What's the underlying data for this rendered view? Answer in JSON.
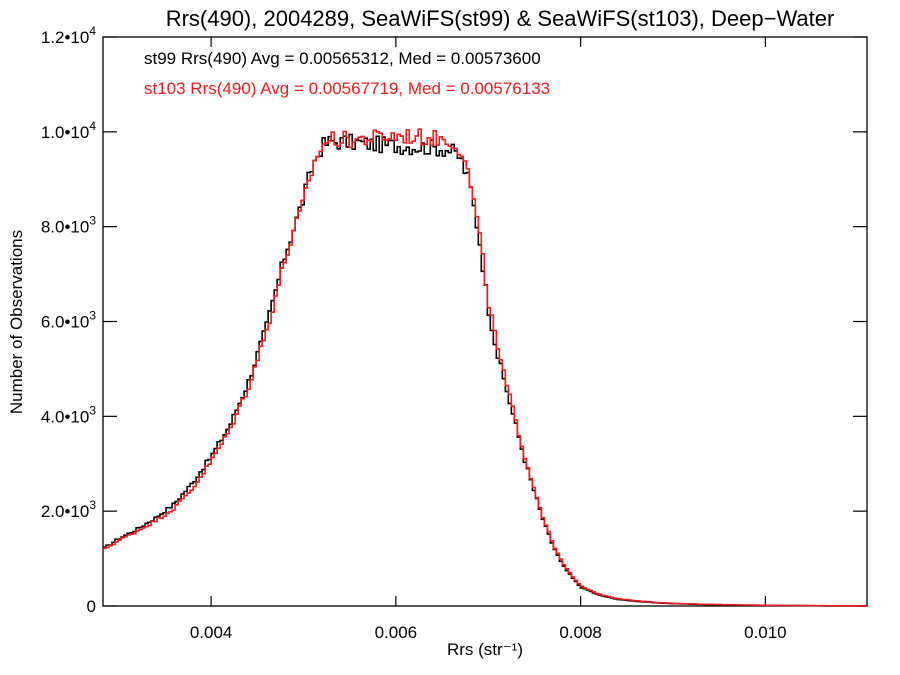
{
  "chart_data": {
    "type": "line",
    "title": "Rrs(490), 2004289, SeaWiFS(st99) & SeaWiFS(st103), Deep−Water",
    "xlabel": "Rrs (str⁻¹)",
    "ylabel": "Number of Observations",
    "xlim": [
      0.00283,
      0.0111
    ],
    "ylim": [
      0,
      12000
    ],
    "x_ticks": [
      {
        "value": 0.004,
        "label": "0.004"
      },
      {
        "value": 0.006,
        "label": "0.006"
      },
      {
        "value": 0.008,
        "label": "0.008"
      },
      {
        "value": 0.01,
        "label": "0.010"
      }
    ],
    "y_ticks": [
      {
        "value": 0,
        "mant": "0",
        "exp": ""
      },
      {
        "value": 2000,
        "mant": "2.0•10",
        "exp": "3"
      },
      {
        "value": 4000,
        "mant": "4.0•10",
        "exp": "3"
      },
      {
        "value": 6000,
        "mant": "6.0•10",
        "exp": "3"
      },
      {
        "value": 8000,
        "mant": "8.0•10",
        "exp": "3"
      },
      {
        "value": 10000,
        "mant": "1.0•10",
        "exp": "4"
      },
      {
        "value": 12000,
        "mant": "1.2•10",
        "exp": "4"
      }
    ],
    "grid": false,
    "legend_position": "top-left",
    "series": [
      {
        "name": "st99",
        "color": "#000000",
        "legend": "st99 Rrs(490) Avg = 0.00565312, Med = 0.00573600",
        "points": [
          [
            0.00283,
            1200
          ],
          [
            0.003,
            1420
          ],
          [
            0.0032,
            1620
          ],
          [
            0.0034,
            1860
          ],
          [
            0.0036,
            2150
          ],
          [
            0.0038,
            2600
          ],
          [
            0.004,
            3150
          ],
          [
            0.0042,
            3800
          ],
          [
            0.0044,
            4700
          ],
          [
            0.0046,
            5900
          ],
          [
            0.0048,
            7400
          ],
          [
            0.005,
            8600
          ],
          [
            0.0051,
            9300
          ],
          [
            0.0052,
            9700
          ],
          [
            0.0053,
            9800
          ],
          [
            0.0055,
            9780
          ],
          [
            0.0057,
            9750
          ],
          [
            0.0059,
            9720
          ],
          [
            0.0061,
            9700
          ],
          [
            0.0063,
            9680
          ],
          [
            0.0065,
            9650
          ],
          [
            0.0066,
            9600
          ],
          [
            0.0067,
            9450
          ],
          [
            0.0068,
            8900
          ],
          [
            0.0069,
            7800
          ],
          [
            0.007,
            6300
          ],
          [
            0.0071,
            5300
          ],
          [
            0.0072,
            4550
          ],
          [
            0.0073,
            3800
          ],
          [
            0.0074,
            3050
          ],
          [
            0.0075,
            2400
          ],
          [
            0.0076,
            1780
          ],
          [
            0.0077,
            1280
          ],
          [
            0.0078,
            880
          ],
          [
            0.0079,
            620
          ],
          [
            0.008,
            400
          ],
          [
            0.0082,
            230
          ],
          [
            0.0084,
            140
          ],
          [
            0.0086,
            100
          ],
          [
            0.0088,
            70
          ],
          [
            0.009,
            50
          ],
          [
            0.0094,
            30
          ],
          [
            0.0098,
            18
          ],
          [
            0.0102,
            10
          ],
          [
            0.0106,
            5
          ],
          [
            0.0111,
            2
          ]
        ]
      },
      {
        "name": "st103",
        "color": "#ee1c1c",
        "legend": "st103 Rrs(490) Avg = 0.00567719, Med = 0.00576133",
        "points": [
          [
            0.00283,
            1180
          ],
          [
            0.003,
            1380
          ],
          [
            0.0032,
            1580
          ],
          [
            0.0034,
            1800
          ],
          [
            0.0036,
            2060
          ],
          [
            0.0038,
            2480
          ],
          [
            0.004,
            3050
          ],
          [
            0.0042,
            3700
          ],
          [
            0.0044,
            4600
          ],
          [
            0.0046,
            5800
          ],
          [
            0.0048,
            7300
          ],
          [
            0.005,
            8500
          ],
          [
            0.0051,
            9250
          ],
          [
            0.0052,
            9720
          ],
          [
            0.0053,
            9850
          ],
          [
            0.0055,
            9830
          ],
          [
            0.0057,
            9860
          ],
          [
            0.0059,
            9900
          ],
          [
            0.0061,
            9920
          ],
          [
            0.0063,
            9880
          ],
          [
            0.0065,
            9850
          ],
          [
            0.0066,
            9820
          ],
          [
            0.0067,
            9650
          ],
          [
            0.0068,
            9000
          ],
          [
            0.0069,
            7900
          ],
          [
            0.007,
            6450
          ],
          [
            0.0071,
            5450
          ],
          [
            0.0072,
            4650
          ],
          [
            0.0073,
            3900
          ],
          [
            0.0074,
            3120
          ],
          [
            0.0075,
            2460
          ],
          [
            0.0076,
            1830
          ],
          [
            0.0077,
            1320
          ],
          [
            0.0078,
            920
          ],
          [
            0.0079,
            650
          ],
          [
            0.008,
            420
          ],
          [
            0.0082,
            250
          ],
          [
            0.0084,
            155
          ],
          [
            0.0086,
            110
          ],
          [
            0.0088,
            78
          ],
          [
            0.009,
            55
          ],
          [
            0.0094,
            33
          ],
          [
            0.0098,
            20
          ],
          [
            0.0102,
            11
          ],
          [
            0.0106,
            6
          ],
          [
            0.0111,
            2
          ]
        ]
      }
    ]
  }
}
